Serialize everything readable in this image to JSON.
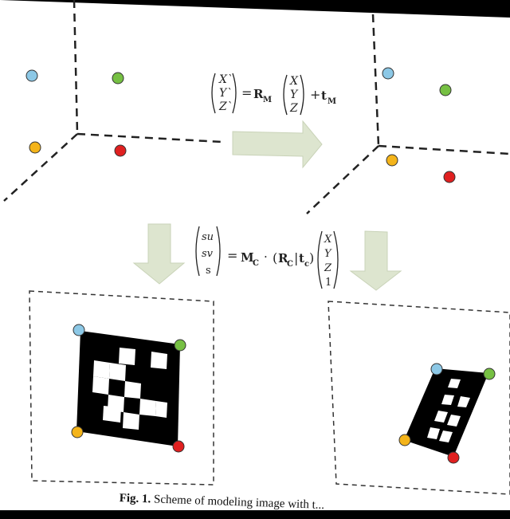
{
  "figure": {
    "equation_top": {
      "lhs": [
        "X`",
        "Y`",
        "Z`"
      ],
      "equals": "=",
      "matrix": "R",
      "matrix_sub": "M",
      "rhs": [
        "X",
        "Y",
        "Z"
      ],
      "plus": "+",
      "vector": "t",
      "vector_sub": "M"
    },
    "equation_bottom": {
      "lhs": [
        "su",
        "sv",
        "s"
      ],
      "equals": "=",
      "matrix": "M",
      "matrix_sub": "C",
      "dot": "·",
      "paren_open": "(",
      "rot": "R",
      "rot_sub": "C",
      "bar": "|",
      "trans": "t",
      "trans_sub": "c",
      "paren_close": ")",
      "rhs": [
        "X",
        "Y",
        "Z",
        "1"
      ]
    },
    "dot_colors": {
      "blue": "#8cc8e6",
      "green": "#76c043",
      "yellow": "#f4b41a",
      "red": "#e02020"
    }
  },
  "caption": {
    "label": "Fig. 1.",
    "text": " Scheme of modeling image with t..."
  }
}
